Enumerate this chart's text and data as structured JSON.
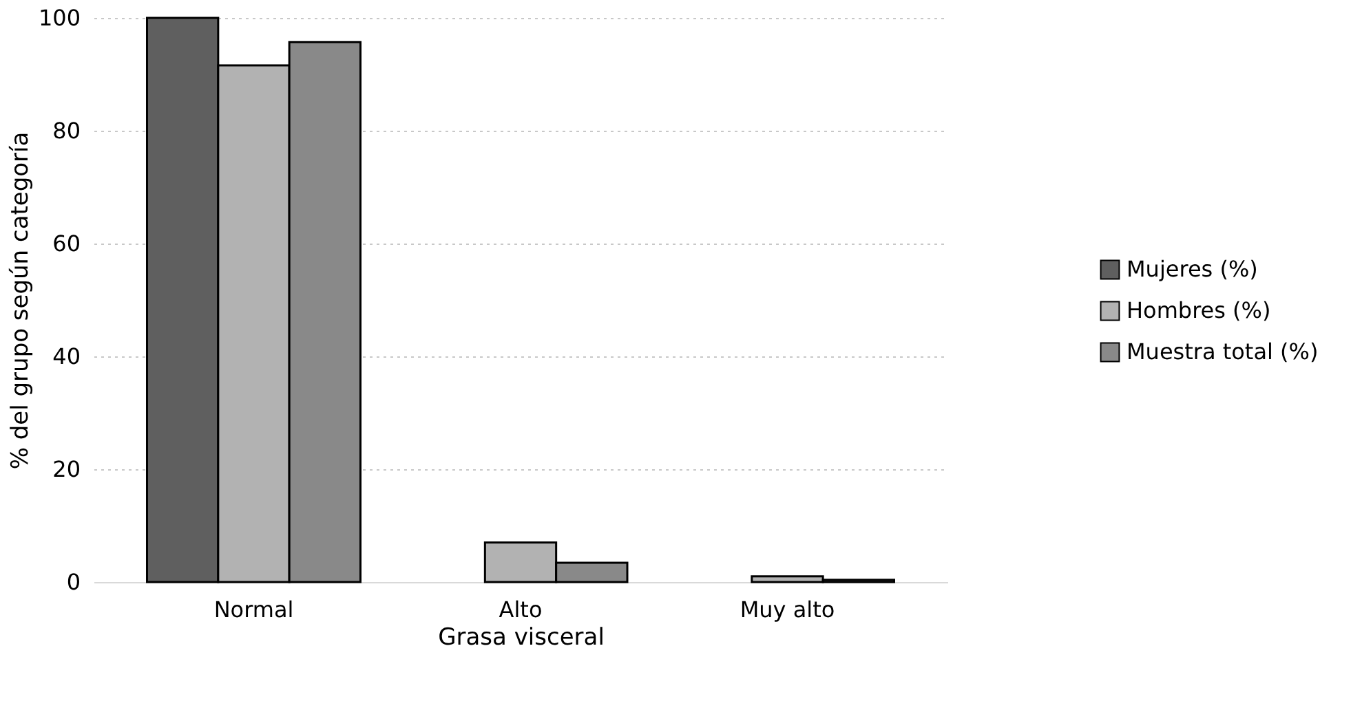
{
  "chart_data": {
    "type": "bar",
    "xlabel": "Grasa visceral",
    "ylabel": "% del grupo según categoría",
    "categories": [
      "Normal",
      "Alto",
      "Muy alto"
    ],
    "series": [
      {
        "name": "Mujeres (%)",
        "color": "#5f5f5f",
        "values": [
          100,
          0,
          0
        ]
      },
      {
        "name": "Hombres (%)",
        "color": "#b2b2b2",
        "values": [
          91.6,
          7.0,
          1.0
        ]
      },
      {
        "name": "Muestra total (%)",
        "color": "#898989",
        "values": [
          95.7,
          3.4,
          0.4
        ]
      }
    ],
    "ylim": [
      0,
      100
    ],
    "yticks": [
      0,
      20,
      40,
      60,
      80,
      100
    ],
    "grid": "y",
    "legend": "right"
  }
}
